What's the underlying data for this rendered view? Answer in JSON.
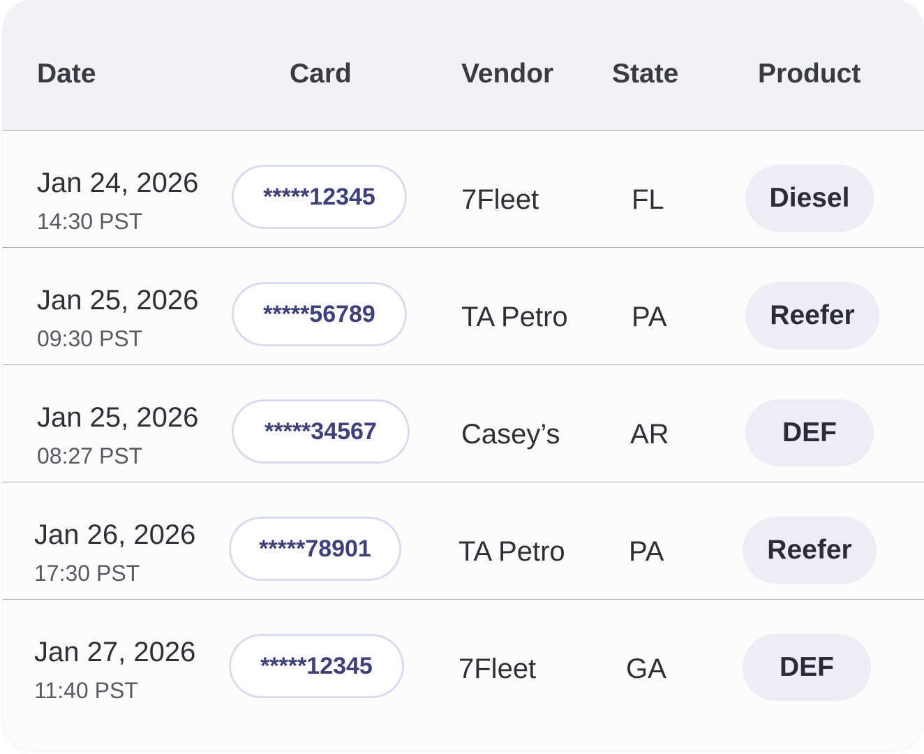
{
  "table": {
    "columns": [
      "Date",
      "Card",
      "Vendor",
      "State",
      "Product"
    ],
    "rows": [
      {
        "date": "Jan 24, 2026",
        "time": "14:30 PST",
        "card": "*****12345",
        "vendor": "7Fleet",
        "state": "FL",
        "product": "Diesel"
      },
      {
        "date": "Jan 25, 2026",
        "time": "09:30 PST",
        "card": "*****56789",
        "vendor": "TA Petro",
        "state": "PA",
        "product": "Reefer"
      },
      {
        "date": "Jan 25, 2026",
        "time": "08:27 PST",
        "card": "*****34567",
        "vendor": "Casey’s",
        "state": "AR",
        "product": "DEF"
      },
      {
        "date": "Jan 26, 2026",
        "time": "17:30 PST",
        "card": "*****78901",
        "vendor": "TA Petro",
        "state": "PA",
        "product": "Reefer"
      },
      {
        "date": "Jan 27, 2026",
        "time": "11:40 PST",
        "card": "*****12345",
        "vendor": "7Fleet",
        "state": "GA",
        "product": "DEF"
      }
    ]
  },
  "colors": {
    "header_background": "#f2f1f6",
    "card_pill_border": "#dcdaee",
    "card_text": "#3e4078",
    "product_pill_background": "#eeedf6"
  }
}
